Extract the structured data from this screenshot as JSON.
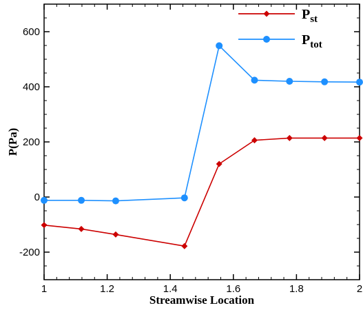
{
  "chart_data": {
    "type": "line",
    "title": "",
    "xlabel": "Streamwise Location",
    "ylabel": "P(Pa)",
    "xlim": [
      1,
      2
    ],
    "ylim": [
      -300,
      700
    ],
    "xticks": [
      1,
      1.2,
      1.4,
      1.6,
      1.8,
      2
    ],
    "xtick_labels": [
      "1",
      "1.2",
      "1.4",
      "1.6",
      "1.8",
      "2"
    ],
    "yticks": [
      -200,
      0,
      200,
      400,
      600
    ],
    "ytick_labels": [
      "-200",
      "0",
      "200",
      "400",
      "600"
    ],
    "grid": false,
    "legend_position": "top-right",
    "series": [
      {
        "name": "P",
        "name_subscript": "st",
        "color": "#cc0000",
        "marker": "diamond",
        "x": [
          1.0,
          1.118,
          1.227,
          1.445,
          1.555,
          1.667,
          1.778,
          1.889,
          2.0
        ],
        "y": [
          -102,
          -116,
          -136,
          -178,
          120,
          206,
          214,
          214,
          214
        ]
      },
      {
        "name": "P",
        "name_subscript": "tot",
        "color": "#1e90ff",
        "marker": "circle",
        "x": [
          1.0,
          1.118,
          1.227,
          1.445,
          1.555,
          1.667,
          1.778,
          1.889,
          2.0
        ],
        "y": [
          -12,
          -12,
          -14,
          -3,
          549,
          424,
          420,
          418,
          417
        ]
      }
    ]
  }
}
